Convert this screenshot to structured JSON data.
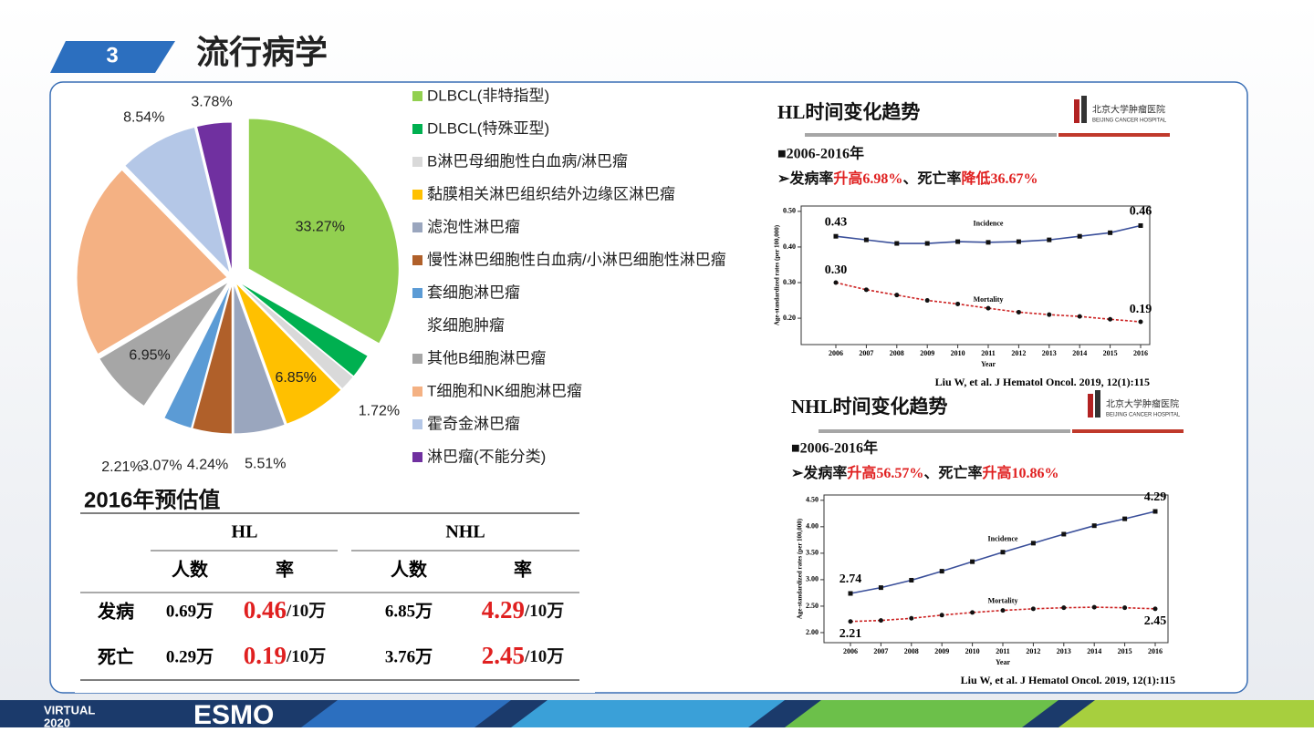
{
  "header": {
    "number": "3",
    "title": "流行病学"
  },
  "chart_data": [
    {
      "type": "pie",
      "categories": [
        "DLBCL(非特指型)",
        "DLBCL(特殊亚型)",
        "B淋巴母细胞性白血病/淋巴瘤",
        "黏膜相关淋巴组织结外边缘区淋巴瘤",
        "滤泡性淋巴瘤",
        "慢性淋巴细胞性白血病/小淋巴细胞性淋巴瘤",
        "套细胞淋巴瘤",
        "浆细胞肿瘤",
        "其他B细胞淋巴瘤",
        "T细胞和NK细胞淋巴瘤",
        "霍奇金淋巴瘤",
        "淋巴瘤(不能分类)"
      ],
      "values": [
        33.27,
        2.64,
        1.72,
        6.85,
        5.51,
        4.24,
        3.07,
        2.21,
        6.95,
        21.22,
        8.54,
        3.78
      ],
      "value_labels": [
        "33.27%",
        null,
        "1.72%",
        "6.85%",
        "5.51%",
        "4.24%",
        "3.07%",
        "2.21%",
        "6.95%",
        null,
        "8.54%",
        "3.78%"
      ],
      "colors": [
        "#92d050",
        "#00b050",
        "#d9d9d9",
        "#ffc000",
        "#9aa6be",
        "#b0602a",
        "#5b9bd5",
        "#ffffff",
        "#a6a6a6",
        "#f4b183",
        "#b4c7e7",
        "#7030a0"
      ]
    },
    {
      "type": "line",
      "title": "HL时间变化趋势",
      "period": "■2006-2016年",
      "summary": [
        "➢发病率",
        "升高6.98%",
        "、死亡率",
        "降低36.67%"
      ],
      "categories": [
        "2006",
        "2007",
        "2008",
        "2009",
        "2010",
        "2011",
        "2012",
        "2013",
        "2014",
        "2015",
        "2016"
      ],
      "series": [
        {
          "name": "Incidence",
          "color": "#3a4f9a",
          "marker": "square",
          "style": "solid",
          "values": [
            0.43,
            0.42,
            0.41,
            0.41,
            0.415,
            0.413,
            0.415,
            0.42,
            0.43,
            0.44,
            0.46
          ],
          "value_labels": [
            "0.43",
            null,
            null,
            null,
            null,
            null,
            null,
            null,
            null,
            null,
            "0.46"
          ]
        },
        {
          "name": "Mortality",
          "color": "#cc2222",
          "marker": "circle",
          "style": "dashed",
          "values": [
            0.3,
            0.28,
            0.265,
            0.25,
            0.24,
            0.228,
            0.217,
            0.21,
            0.205,
            0.197,
            0.19
          ],
          "value_labels": [
            "0.30",
            null,
            null,
            null,
            null,
            null,
            null,
            null,
            null,
            null,
            "0.19"
          ]
        }
      ],
      "ylim": [
        0.126,
        0.515
      ],
      "yticks": [
        {
          "value": 0.2,
          "label": "0.20"
        },
        {
          "value": 0.3,
          "label": "0.30"
        },
        {
          "value": 0.4,
          "label": "0.40"
        },
        {
          "value": 0.5,
          "label": "0.50"
        }
      ],
      "ylabel": "Age-standardized rates (per 100,000)",
      "xlabel": "Year",
      "source": "Liu W, et al. J Hematol Oncol. 2019, 12(1):115"
    },
    {
      "type": "line",
      "title": "NHL时间变化趋势",
      "period": "■2006-2016年",
      "summary": [
        "➢发病率",
        "升高56.57%",
        "、死亡率",
        "升高10.86%"
      ],
      "categories": [
        "2006",
        "2007",
        "2008",
        "2009",
        "2010",
        "2011",
        "2012",
        "2013",
        "2014",
        "2015",
        "2016"
      ],
      "series": [
        {
          "name": "Incidence",
          "color": "#3a4f9a",
          "marker": "square",
          "style": "solid",
          "values": [
            2.74,
            2.85,
            2.99,
            3.16,
            3.34,
            3.52,
            3.69,
            3.86,
            4.02,
            4.15,
            4.29
          ],
          "value_labels": [
            "2.74",
            null,
            null,
            null,
            null,
            null,
            null,
            null,
            null,
            null,
            "4.29"
          ]
        },
        {
          "name": "Mortality",
          "color": "#cc2222",
          "marker": "circle",
          "style": "dashed",
          "values": [
            2.21,
            2.23,
            2.27,
            2.33,
            2.38,
            2.42,
            2.45,
            2.47,
            2.48,
            2.47,
            2.45
          ],
          "value_labels": [
            "2.21",
            null,
            null,
            null,
            null,
            null,
            null,
            null,
            null,
            null,
            "2.45"
          ]
        }
      ],
      "ylim": [
        1.81,
        4.6
      ],
      "yticks": [
        {
          "value": 2,
          "label": "2.00"
        },
        {
          "value": 2.5,
          "label": "2.50"
        },
        {
          "value": 3,
          "label": "3.00"
        },
        {
          "value": 3.5,
          "label": "3.50"
        },
        {
          "value": 4,
          "label": "4.00"
        },
        {
          "value": 4.5,
          "label": "4.50"
        }
      ],
      "ylabel": "Age-standardized rates (per 100,000)",
      "xlabel": "Year",
      "source": "Liu W, et al. J Hematol Oncol. 2019, 12(1):115"
    }
  ],
  "logo": {
    "name": "北京大学肿瘤医院",
    "english": "BEIJING CANCER HOSPITAL"
  },
  "table": {
    "caption": "2016年预估值",
    "groups": [
      "HL",
      "NHL"
    ],
    "columns": [
      "人数",
      "率",
      "人数",
      "率"
    ],
    "rows": [
      [
        "发病",
        "0.69万",
        [
          "0.46",
          "/10万"
        ],
        "6.85万",
        [
          "4.29",
          "/10万"
        ]
      ],
      [
        "死亡",
        "0.29万",
        [
          "0.19",
          "/10万"
        ],
        "3.76万",
        [
          "2.45",
          "/10万"
        ]
      ]
    ]
  },
  "footer": {
    "line1": "VIRTUAL",
    "line2": "2020",
    "logo": "ESMO"
  }
}
